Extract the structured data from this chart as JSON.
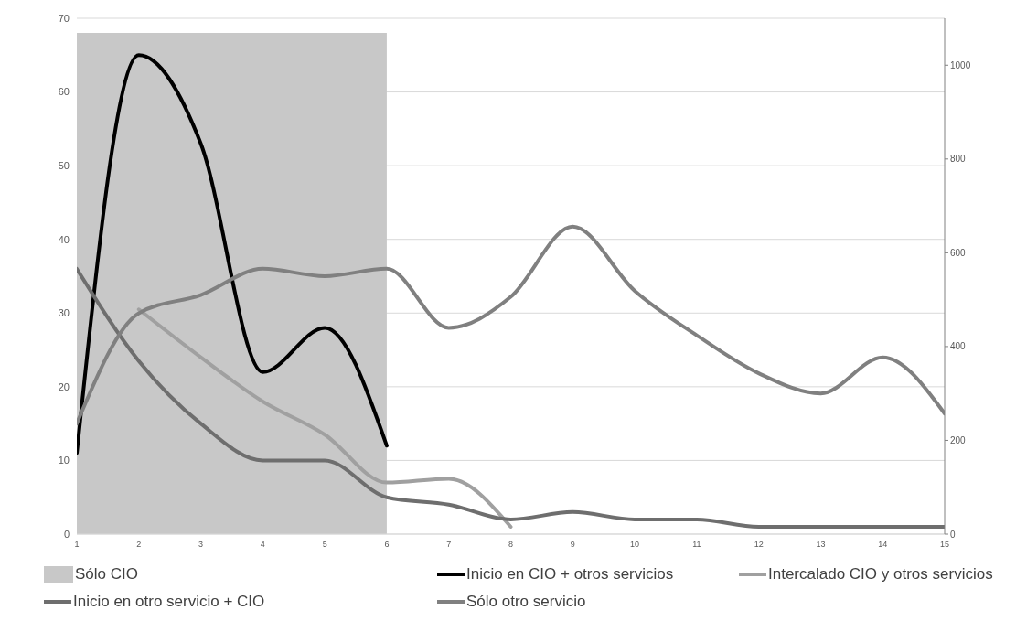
{
  "chart_data": {
    "type": "line",
    "x": [
      1,
      2,
      3,
      4,
      5,
      6,
      7,
      8,
      9,
      10,
      11,
      12,
      13,
      14,
      15
    ],
    "xlim": [
      1,
      15
    ],
    "xticks": [
      1,
      2,
      3,
      4,
      5,
      6,
      7,
      8,
      9,
      10,
      11,
      12,
      13,
      14,
      15
    ],
    "ylim": [
      0,
      70
    ],
    "yticks": [
      0,
      10,
      20,
      30,
      40,
      50,
      60,
      70
    ],
    "y2lim": [
      0,
      1100
    ],
    "y2ticks": [
      0,
      200,
      400,
      600,
      800,
      1000
    ],
    "grid": "y",
    "legend": "bottom",
    "marker": "none",
    "line_style": "solid",
    "series": [
      {
        "name": "Sólo CIO",
        "type": "area",
        "color": "#c8c8c8",
        "values": [
          68,
          68,
          68,
          68,
          68,
          68,
          null,
          null,
          null,
          null,
          null,
          null,
          null,
          null,
          null
        ]
      },
      {
        "name": "Inicio en CIO + otros servicios",
        "color": "#000000",
        "values": [
          11,
          65,
          53,
          22,
          28,
          12,
          null,
          null,
          null,
          null,
          null,
          null,
          null,
          null,
          null
        ]
      },
      {
        "name": "Intercalado CIO y otros servicios",
        "color": "#a0a0a0",
        "values": [
          null,
          30.5,
          24,
          18,
          13.5,
          7,
          7.5,
          1,
          null,
          null,
          null,
          null,
          null,
          null,
          null
        ]
      },
      {
        "name": "Inicio en otro servicio + CIO",
        "color": "#6e6e6e",
        "values": [
          36,
          23.5,
          15,
          10,
          10,
          5,
          4,
          2,
          3,
          2,
          2,
          1,
          1,
          1,
          1
        ]
      },
      {
        "name": "Sólo otro servicio",
        "color": "#808080",
        "axis": "y2",
        "values": [
          236,
          471,
          510,
          566,
          550,
          566,
          440,
          506,
          656,
          519,
          424,
          343,
          300,
          377,
          257
        ]
      }
    ]
  }
}
